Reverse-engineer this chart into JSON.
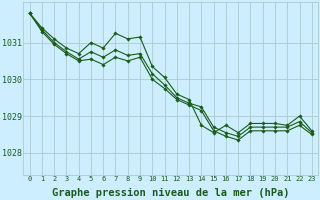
{
  "background_color": "#cceeff",
  "grid_color": "#aacccc",
  "line_color": "#1a5c1a",
  "marker_color": "#1a5c1a",
  "xlabel": "Graphe pression niveau de la mer (hPa)",
  "xlabel_fontsize": 7.5,
  "ylabel_ticks": [
    1028,
    1029,
    1030,
    1031
  ],
  "ylim": [
    1027.4,
    1032.1
  ],
  "xlim": [
    -0.5,
    23.5
  ],
  "series1": [
    1031.8,
    1031.4,
    1031.1,
    1030.85,
    1030.7,
    1031.0,
    1030.85,
    1031.25,
    1031.1,
    1031.15,
    1030.35,
    1030.05,
    1029.6,
    1029.45,
    1028.75,
    1028.55,
    1028.75,
    1028.55,
    1028.8,
    1028.8,
    1028.8,
    1028.75,
    1029.0,
    1028.6
  ],
  "series2": [
    1031.8,
    1031.35,
    1031.0,
    1030.75,
    1030.55,
    1030.75,
    1030.6,
    1030.8,
    1030.65,
    1030.7,
    1030.15,
    1029.85,
    1029.5,
    1029.35,
    1029.25,
    1028.7,
    1028.55,
    1028.45,
    1028.7,
    1028.7,
    1028.7,
    1028.7,
    1028.85,
    1028.55
  ],
  "series3": [
    1031.8,
    1031.3,
    1030.95,
    1030.7,
    1030.5,
    1030.55,
    1030.4,
    1030.6,
    1030.5,
    1030.6,
    1030.0,
    1029.75,
    1029.45,
    1029.3,
    1029.15,
    1028.6,
    1028.45,
    1028.35,
    1028.6,
    1028.6,
    1028.6,
    1028.6,
    1028.75,
    1028.5
  ]
}
